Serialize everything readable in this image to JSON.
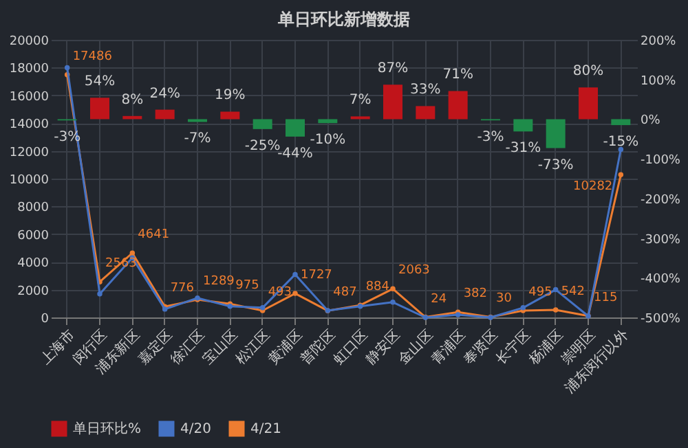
{
  "chart_data": {
    "type": "bar",
    "title": "单日环比新增数据",
    "categories": [
      "上海市",
      "闵行区",
      "浦东新区",
      "嘉定区",
      "徐汇区",
      "宝山区",
      "松江区",
      "黄浦区",
      "普陀区",
      "虹口区",
      "静安区",
      "金山区",
      "青浦区",
      "奉贤区",
      "长宁区",
      "杨浦区",
      "崇明区",
      "浦东闵行以外"
    ],
    "series": [
      {
        "name": "单日环比%",
        "axis": "y2",
        "color": "#c0141a",
        "colors": [
          "#1e8c4a",
          "#c0141a",
          "#c0141a",
          "#c0141a",
          "#1e8c4a",
          "#c0141a",
          "#1e8c4a",
          "#1e8c4a",
          "#1e8c4a",
          "#c0141a",
          "#c0141a",
          "#c0141a",
          "#c0141a",
          "#1e8c4a",
          "#1e8c4a",
          "#1e8c4a",
          "#c0141a",
          "#1e8c4a"
        ],
        "values": [
          -3,
          54,
          8,
          24,
          -7,
          19,
          -25,
          -44,
          -10,
          7,
          87,
          33,
          71,
          -3,
          -31,
          -73,
          80,
          -15
        ],
        "value_labels": [
          "-3%",
          "54%",
          "8%",
          "24%",
          "-7%",
          "19%",
          "-25%",
          "-44%",
          "-10%",
          "7%",
          "87%",
          "33%",
          "71%",
          "-3%",
          "-31%",
          "-73%",
          "80%",
          "-15%"
        ]
      },
      {
        "name": "4/20",
        "type": "line",
        "color": "#4472c4",
        "values": [
          18000,
          1700,
          4300,
          600,
          1400,
          800,
          700,
          3100,
          500,
          800,
          1100,
          0,
          200,
          0,
          700,
          2000,
          100,
          12100
        ]
      },
      {
        "name": "4/21",
        "type": "line",
        "color": "#ed7d31",
        "values": [
          17486,
          2563,
          4641,
          776,
          1289,
          975,
          493,
          1727,
          487,
          884,
          2063,
          24,
          382,
          30,
          495,
          542,
          115,
          10282
        ],
        "value_labels": [
          "17486",
          "2563",
          "4641",
          "776",
          "1289",
          "975",
          "493",
          "1727",
          "487",
          "884",
          "2063",
          "24",
          "382",
          "30",
          "495",
          "542",
          "115",
          "10282"
        ]
      }
    ],
    "ylim": [
      0,
      20000
    ],
    "yticks": [
      0,
      2000,
      4000,
      6000,
      8000,
      10000,
      12000,
      14000,
      16000,
      18000,
      20000
    ],
    "y2lim": [
      -500,
      200
    ],
    "y2ticks": [
      {
        "value": -500,
        "label": "-500%"
      },
      {
        "value": -400,
        "label": "-400%"
      },
      {
        "value": -300,
        "label": "-300%"
      },
      {
        "value": -200,
        "label": "-200%"
      },
      {
        "value": -100,
        "label": "-100%"
      },
      {
        "value": 0,
        "label": "0%"
      },
      {
        "value": 100,
        "label": "100%"
      },
      {
        "value": 200,
        "label": "200%"
      }
    ],
    "grid": true,
    "legend": "bottom",
    "marker": "circle",
    "line_style": "solid"
  }
}
